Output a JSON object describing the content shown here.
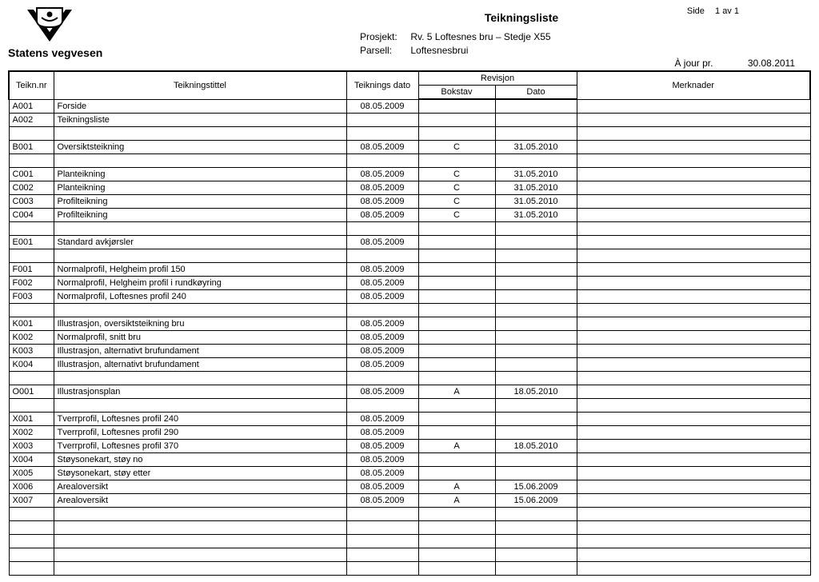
{
  "page": {
    "side_label": "Side",
    "page_num": "1",
    "av": "av",
    "total": "1"
  },
  "org_name": "Statens vegvesen",
  "doc_title": "Teikningsliste",
  "meta": {
    "prosjekt_label": "Prosjekt:",
    "prosjekt_value": "Rv. 5 Loftesnes bru – Stedje X55",
    "parsell_label": "Parsell:",
    "parsell_value": "Loftesnesbrui"
  },
  "ajour": {
    "label": "À jour pr.",
    "value": "30.08.2011"
  },
  "headers": {
    "nr": "Teikn.nr",
    "title": "Teikningstittel",
    "date": "Teiknings dato",
    "rev": "Revisjon",
    "bokstav": "Bokstav",
    "rdate": "Dato",
    "merk": "Merknader"
  },
  "rows": [
    {
      "nr": "A001",
      "title": "Forside",
      "date": "08.05.2009",
      "bok": "",
      "rdate": "",
      "merk": ""
    },
    {
      "nr": "A002",
      "title": "Teikningsliste",
      "date": "",
      "bok": "",
      "rdate": "",
      "merk": ""
    },
    {
      "nr": "",
      "title": "",
      "date": "",
      "bok": "",
      "rdate": "",
      "merk": ""
    },
    {
      "nr": "B001",
      "title": "Oversiktsteikning",
      "date": "08.05.2009",
      "bok": "C",
      "rdate": "31.05.2010",
      "merk": ""
    },
    {
      "nr": "",
      "title": "",
      "date": "",
      "bok": "",
      "rdate": "",
      "merk": ""
    },
    {
      "nr": "C001",
      "title": "Planteikning",
      "date": "08.05.2009",
      "bok": "C",
      "rdate": "31.05.2010",
      "merk": ""
    },
    {
      "nr": "C002",
      "title": "Planteikning",
      "date": "08.05.2009",
      "bok": "C",
      "rdate": "31.05.2010",
      "merk": ""
    },
    {
      "nr": "C003",
      "title": "Profilteikning",
      "date": "08.05.2009",
      "bok": "C",
      "rdate": "31.05.2010",
      "merk": ""
    },
    {
      "nr": "C004",
      "title": "Profilteikning",
      "date": "08.05.2009",
      "bok": "C",
      "rdate": "31.05.2010",
      "merk": ""
    },
    {
      "nr": "",
      "title": "",
      "date": "",
      "bok": "",
      "rdate": "",
      "merk": ""
    },
    {
      "nr": "E001",
      "title": "Standard avkjørsler",
      "date": "08.05.2009",
      "bok": "",
      "rdate": "",
      "merk": ""
    },
    {
      "nr": "",
      "title": "",
      "date": "",
      "bok": "",
      "rdate": "",
      "merk": ""
    },
    {
      "nr": "F001",
      "title": "Normalprofil, Helgheim profil 150",
      "date": "08.05.2009",
      "bok": "",
      "rdate": "",
      "merk": ""
    },
    {
      "nr": "F002",
      "title": "Normalprofil, Helgheim profil i rundkøyring",
      "date": "08.05.2009",
      "bok": "",
      "rdate": "",
      "merk": ""
    },
    {
      "nr": "F003",
      "title": "Normalprofil, Loftesnes profil 240",
      "date": "08.05.2009",
      "bok": "",
      "rdate": "",
      "merk": ""
    },
    {
      "nr": "",
      "title": "",
      "date": "",
      "bok": "",
      "rdate": "",
      "merk": ""
    },
    {
      "nr": "K001",
      "title": "Illustrasjon, oversiktsteikning bru",
      "date": "08.05.2009",
      "bok": "",
      "rdate": "",
      "merk": ""
    },
    {
      "nr": "K002",
      "title": "Normalprofil, snitt bru",
      "date": "08.05.2009",
      "bok": "",
      "rdate": "",
      "merk": ""
    },
    {
      "nr": "K003",
      "title": "Illustrasjon, alternativt brufundament",
      "date": "08.05.2009",
      "bok": "",
      "rdate": "",
      "merk": ""
    },
    {
      "nr": "K004",
      "title": "Illustrasjon, alternativt brufundament",
      "date": "08.05.2009",
      "bok": "",
      "rdate": "",
      "merk": ""
    },
    {
      "nr": "",
      "title": "",
      "date": "",
      "bok": "",
      "rdate": "",
      "merk": ""
    },
    {
      "nr": "O001",
      "title": "Illustrasjonsplan",
      "date": "08.05.2009",
      "bok": "A",
      "rdate": "18.05.2010",
      "merk": ""
    },
    {
      "nr": "",
      "title": "",
      "date": "",
      "bok": "",
      "rdate": "",
      "merk": ""
    },
    {
      "nr": "X001",
      "title": "Tverrprofil, Loftesnes profil 240",
      "date": "08.05.2009",
      "bok": "",
      "rdate": "",
      "merk": ""
    },
    {
      "nr": "X002",
      "title": "Tverrprofil, Loftesnes profil 290",
      "date": "08.05.2009",
      "bok": "",
      "rdate": "",
      "merk": ""
    },
    {
      "nr": "X003",
      "title": "Tverrprofil, Loftesnes profil 370",
      "date": "08.05.2009",
      "bok": "A",
      "rdate": "18.05.2010",
      "merk": ""
    },
    {
      "nr": "X004",
      "title": "Støysonekart, støy no",
      "date": "08.05.2009",
      "bok": "",
      "rdate": "",
      "merk": ""
    },
    {
      "nr": "X005",
      "title": "Støysonekart, støy etter",
      "date": "08.05.2009",
      "bok": "",
      "rdate": "",
      "merk": ""
    },
    {
      "nr": "X006",
      "title": "Arealoversikt",
      "date": "08.05.2009",
      "bok": "A",
      "rdate": "15.06.2009",
      "merk": ""
    },
    {
      "nr": "X007",
      "title": "Arealoversikt",
      "date": "08.05.2009",
      "bok": "A",
      "rdate": "15.06.2009",
      "merk": ""
    },
    {
      "nr": "",
      "title": "",
      "date": "",
      "bok": "",
      "rdate": "",
      "merk": ""
    },
    {
      "nr": "",
      "title": "",
      "date": "",
      "bok": "",
      "rdate": "",
      "merk": ""
    },
    {
      "nr": "",
      "title": "",
      "date": "",
      "bok": "",
      "rdate": "",
      "merk": ""
    },
    {
      "nr": "",
      "title": "",
      "date": "",
      "bok": "",
      "rdate": "",
      "merk": ""
    },
    {
      "nr": "",
      "title": "",
      "date": "",
      "bok": "",
      "rdate": "",
      "merk": ""
    }
  ]
}
